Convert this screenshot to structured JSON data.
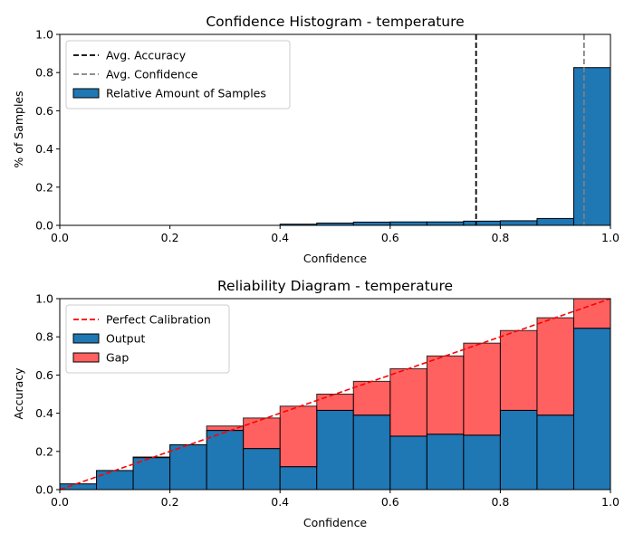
{
  "chart_data": [
    {
      "type": "bar",
      "title": "Confidence Histogram - temperature",
      "xlabel": "Confidence",
      "ylabel": "% of Samples",
      "xlim": [
        0.0,
        1.0
      ],
      "ylim": [
        0.0,
        1.0
      ],
      "xticks": [
        "0.0",
        "0.2",
        "0.4",
        "0.6",
        "0.8",
        "1.0"
      ],
      "yticks": [
        "0.0",
        "0.2",
        "0.4",
        "0.6",
        "0.8",
        "1.0"
      ],
      "bin_edges": [
        0.0,
        0.0667,
        0.1333,
        0.2,
        0.2667,
        0.3333,
        0.4,
        0.4667,
        0.5333,
        0.6,
        0.6667,
        0.7333,
        0.8,
        0.8667,
        0.9333,
        1.0
      ],
      "series": [
        {
          "name": "Relative Amount of Samples",
          "color": "#1f77b4",
          "values": [
            0.0,
            0.0,
            0.0,
            0.0,
            0.0,
            0.0,
            0.006,
            0.012,
            0.017,
            0.018,
            0.018,
            0.022,
            0.024,
            0.036,
            0.826
          ]
        }
      ],
      "reference_lines": [
        {
          "name": "Avg. Accuracy",
          "x": 0.756,
          "color": "#000000",
          "style": "dashed"
        },
        {
          "name": "Avg. Confidence",
          "x": 0.952,
          "color": "#808080",
          "style": "dashed"
        }
      ],
      "legend": {
        "placement": "top-left",
        "entries": [
          "Avg. Accuracy",
          "Avg. Confidence",
          "Relative Amount of Samples"
        ]
      }
    },
    {
      "type": "bar",
      "title": "Reliability Diagram - temperature",
      "xlabel": "Confidence",
      "ylabel": "Accuracy",
      "xlim": [
        0.0,
        1.0
      ],
      "ylim": [
        0.0,
        1.0
      ],
      "xticks": [
        "0.0",
        "0.2",
        "0.4",
        "0.6",
        "0.8",
        "1.0"
      ],
      "yticks": [
        "0.0",
        "0.2",
        "0.4",
        "0.6",
        "0.8",
        "1.0"
      ],
      "bin_edges": [
        0.0,
        0.0667,
        0.1333,
        0.2,
        0.2667,
        0.3333,
        0.4,
        0.4667,
        0.5333,
        0.6,
        0.6667,
        0.7333,
        0.8,
        0.8667,
        0.9333,
        1.0
      ],
      "series": [
        {
          "name": "Output",
          "color": "#1f77b4",
          "values": [
            0.03,
            0.1,
            0.17,
            0.235,
            0.31,
            0.215,
            0.12,
            0.415,
            0.39,
            0.28,
            0.29,
            0.285,
            0.415,
            0.39,
            0.845
          ]
        },
        {
          "name": "Gap",
          "color": "#ff0000",
          "values": [
            0.03,
            0.1,
            0.167,
            0.233,
            0.333,
            0.375,
            0.437,
            0.5,
            0.567,
            0.633,
            0.7,
            0.767,
            0.833,
            0.9,
            1.0
          ]
        }
      ],
      "reference_lines": [
        {
          "name": "Perfect Calibration",
          "from": [
            0.0,
            0.0
          ],
          "to": [
            1.0,
            1.0
          ],
          "color": "#ff0000",
          "style": "dashed"
        }
      ],
      "legend": {
        "placement": "top-left",
        "entries": [
          "Perfect Calibration",
          "Output",
          "Gap"
        ]
      }
    }
  ]
}
